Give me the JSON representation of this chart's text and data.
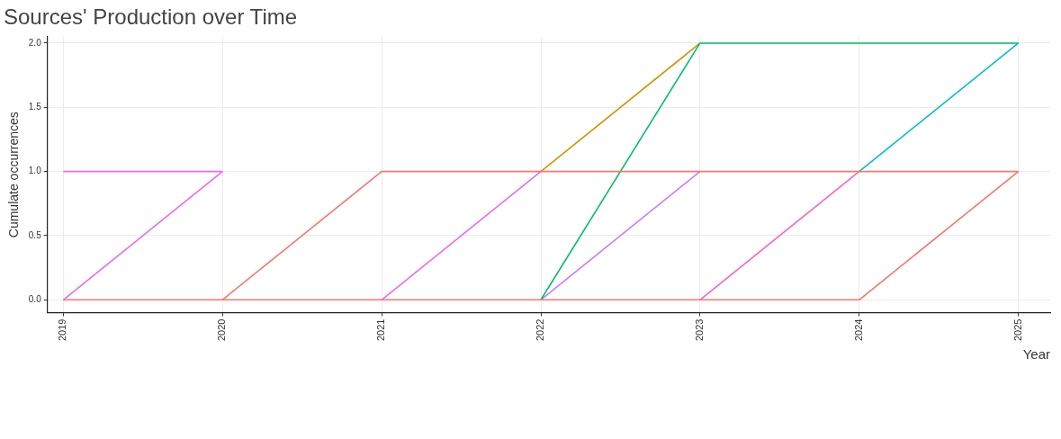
{
  "chart_data": {
    "type": "line",
    "title": "Sources' Production over Time",
    "xlabel": "Year",
    "ylabel": "Cumulate occurrences",
    "x": [
      2019,
      2020,
      2021,
      2022,
      2023,
      2024,
      2025
    ],
    "series": [
      {
        "color": "#f8766d",
        "values": [
          null,
          0,
          1,
          1,
          1,
          1,
          1
        ]
      },
      {
        "color": "#f8766d",
        "values": [
          0,
          0,
          0,
          0,
          0,
          0,
          1
        ]
      },
      {
        "color": "#00be67",
        "values": [
          null,
          null,
          null,
          0,
          2,
          2,
          2
        ]
      },
      {
        "color": "#e76bf3",
        "values": [
          1,
          1,
          null,
          null,
          null,
          null,
          null
        ]
      },
      {
        "color": "#e76bf3",
        "values": [
          0,
          1,
          null,
          null,
          null,
          null,
          null
        ]
      },
      {
        "color": "#e76bf3",
        "values": [
          null,
          null,
          0,
          1,
          null,
          null,
          null
        ]
      },
      {
        "color": "#cd9600",
        "values": [
          null,
          null,
          null,
          1,
          2,
          null,
          null
        ]
      },
      {
        "color": "#c77cff",
        "values": [
          null,
          null,
          null,
          0,
          1,
          null,
          null
        ]
      },
      {
        "color": "#00bfc4",
        "values": [
          null,
          null,
          null,
          null,
          null,
          1,
          2
        ]
      },
      {
        "color": "#ff61c3",
        "values": [
          null,
          null,
          null,
          null,
          0,
          1,
          null
        ]
      }
    ],
    "xlim": [
      2018.9,
      2025.2
    ],
    "xticks": [
      2019,
      2020,
      2021,
      2022,
      2023,
      2024,
      2025
    ],
    "ylim": [
      -0.1,
      2.05
    ],
    "yticks": [
      {
        "value": 0,
        "label": "0.0"
      },
      {
        "value": 0.5,
        "label": "0.5"
      },
      {
        "value": 1,
        "label": "1.0"
      },
      {
        "value": 1.5,
        "label": "1.5"
      },
      {
        "value": 2,
        "label": "2.0"
      }
    ],
    "grid": true,
    "marker": "none",
    "line_style": "solid"
  }
}
